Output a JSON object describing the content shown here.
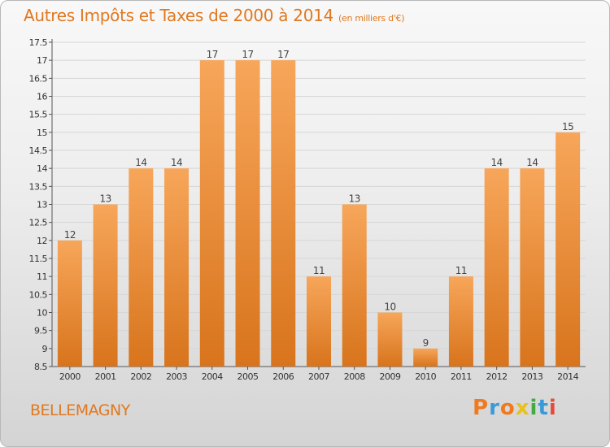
{
  "header": {
    "title": "Autres Impôts et Taxes de 2000 à 2014",
    "unit": "(en milliers d'€)"
  },
  "footer": {
    "place": "BELLEMAGNY",
    "logo": "Proxiti",
    "logo_colors": [
      "#f07a1e",
      "#3a9ad9",
      "#f07a1e",
      "#e8c21a",
      "#44aa44",
      "#3a9ad9",
      "#e84a3a"
    ]
  },
  "colors": {
    "accent": "#e07820",
    "bar_light": "#f7a65a",
    "bar_dark": "#d8741c"
  },
  "chart_data": {
    "type": "bar",
    "title": "Autres Impôts et Taxes de 2000 à 2014",
    "subtitle": "(en milliers d'€)",
    "xlabel": "",
    "ylabel": "",
    "categories": [
      "2000",
      "2001",
      "2002",
      "2003",
      "2004",
      "2005",
      "2006",
      "2007",
      "2008",
      "2009",
      "2010",
      "2011",
      "2012",
      "2013",
      "2014"
    ],
    "values": [
      12,
      13,
      14,
      14,
      17,
      17,
      17,
      11,
      13,
      10,
      9,
      11,
      14,
      14,
      15
    ],
    "ylim": [
      8.5,
      17.5
    ],
    "yticks": [
      8.5,
      9,
      9.5,
      10,
      10.5,
      11,
      11.5,
      12,
      12.5,
      13,
      13.5,
      14,
      14.5,
      15,
      15.5,
      16,
      16.5,
      17,
      17.5
    ],
    "grid": true,
    "legend": "none"
  }
}
